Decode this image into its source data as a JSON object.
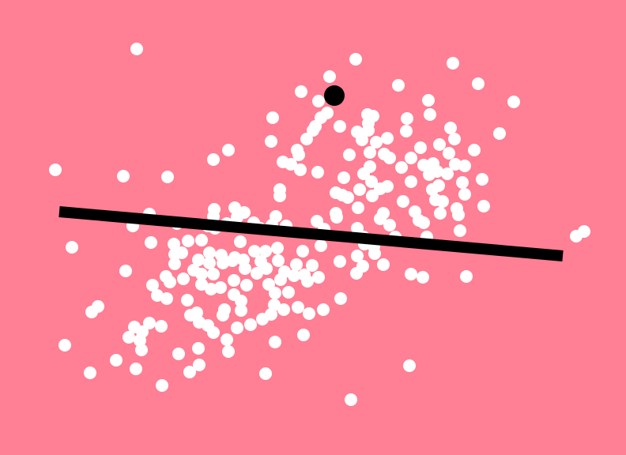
{
  "colors": {
    "background": "#FF7F94",
    "dot": "#FFFFFF",
    "player": "#000000",
    "line": "#000000"
  },
  "scene": {
    "description_free": true,
    "dot_count": 300
  }
}
